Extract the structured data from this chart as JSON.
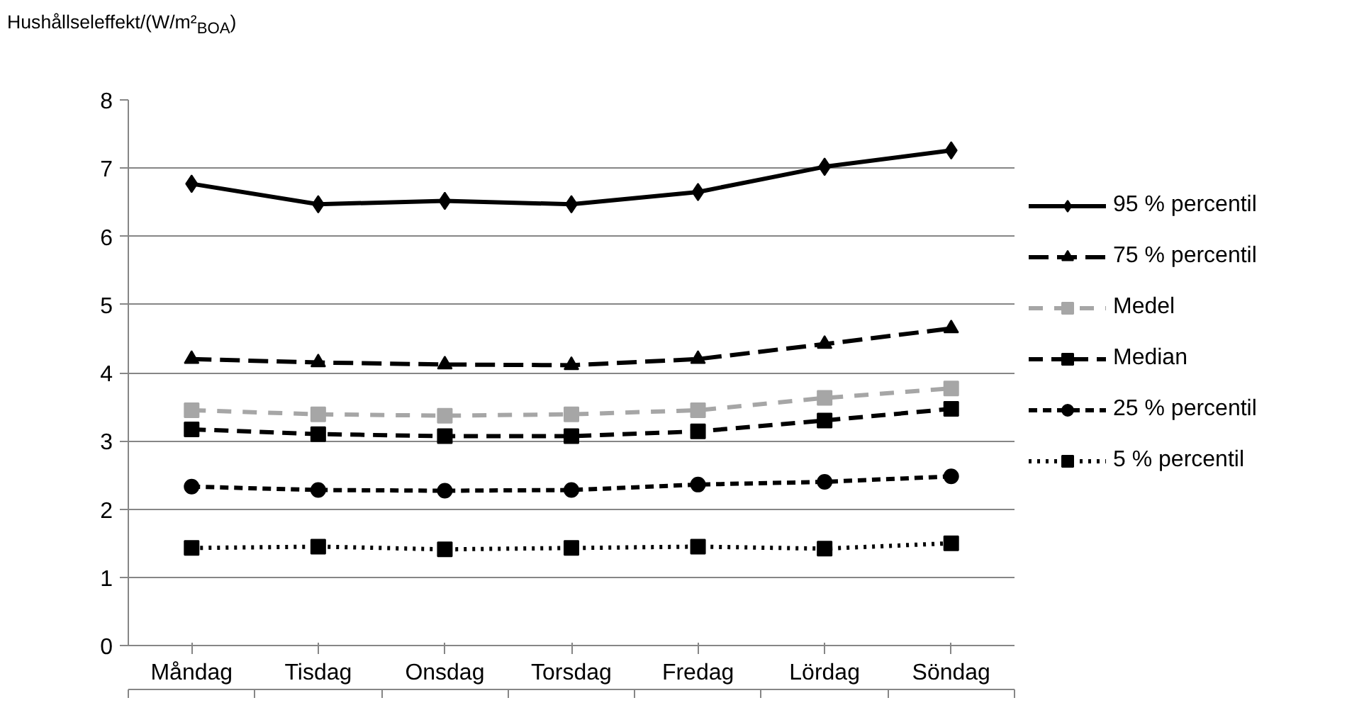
{
  "chart_data": {
    "type": "line",
    "ylabel": "Hushållseleffekt/(W/m²$_{BOA}$)",
    "categories": [
      "Måndag",
      "Tisdag",
      "Onsdag",
      "Torsdag",
      "Fredag",
      "Lördag",
      "Söndag"
    ],
    "ylim": [
      0,
      8
    ],
    "yticks": [
      0,
      1,
      2,
      3,
      4,
      5,
      6,
      7,
      8
    ],
    "grid": "y",
    "legend": "right",
    "series": [
      {
        "name": "95 % percentil",
        "color": "#000000",
        "marker": "diamond",
        "line_style": "solid",
        "values": [
          6.77,
          6.47,
          6.52,
          6.47,
          6.65,
          7.02,
          7.26
        ]
      },
      {
        "name": "75 % percentil",
        "color": "#000000",
        "marker": "triangle",
        "line_style": "dashed",
        "values": [
          4.2,
          4.15,
          4.12,
          4.11,
          4.2,
          4.42,
          4.65
        ]
      },
      {
        "name": "Medel",
        "color": "#a6a6a6",
        "marker": "square",
        "line_style": "dashed",
        "values": [
          3.45,
          3.39,
          3.37,
          3.39,
          3.45,
          3.63,
          3.77
        ]
      },
      {
        "name": "Median",
        "color": "#000000",
        "marker": "square",
        "line_style": "dashed",
        "values": [
          3.17,
          3.1,
          3.07,
          3.07,
          3.14,
          3.3,
          3.47
        ]
      },
      {
        "name": "25 % percentil",
        "color": "#000000",
        "marker": "circle",
        "line_style": "dashed",
        "values": [
          2.33,
          2.28,
          2.27,
          2.28,
          2.36,
          2.4,
          2.48
        ]
      },
      {
        "name": "5 % percentil",
        "color": "#000000",
        "marker": "square",
        "line_style": "dotted",
        "values": [
          1.43,
          1.45,
          1.41,
          1.43,
          1.45,
          1.42,
          1.5
        ]
      }
    ]
  }
}
